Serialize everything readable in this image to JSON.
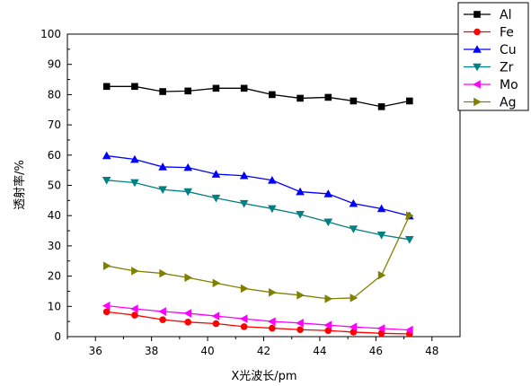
{
  "chart_data": {
    "type": "line",
    "title": "",
    "xlabel": "X光波长/pm",
    "ylabel": "透射率/%",
    "xlim": [
      35,
      49
    ],
    "ylim": [
      0,
      100
    ],
    "xticks": [
      36,
      38,
      40,
      42,
      44,
      46,
      48
    ],
    "yticks": [
      0,
      10,
      20,
      30,
      40,
      50,
      60,
      70,
      80,
      90,
      100
    ],
    "grid": false,
    "legend_position": "top-right",
    "x": [
      36.4,
      37.4,
      38.4,
      39.3,
      40.3,
      41.3,
      42.3,
      43.3,
      44.3,
      45.2,
      46.2,
      47.2
    ],
    "series": [
      {
        "name": "Al",
        "color": "#000000",
        "marker": "square",
        "values": [
          82.7,
          82.7,
          81.0,
          81.2,
          82.1,
          82.1,
          80.0,
          78.8,
          79.1,
          77.9,
          76.0,
          77.9
        ]
      },
      {
        "name": "Fe",
        "color": "#ff0000",
        "marker": "circle",
        "values": [
          8.2,
          7.1,
          5.6,
          4.8,
          4.3,
          3.3,
          2.8,
          2.3,
          2.0,
          1.5,
          1.1,
          0.9
        ]
      },
      {
        "name": "Cu",
        "color": "#0000ff",
        "marker": "triangle-up",
        "values": [
          59.8,
          58.6,
          56.1,
          55.9,
          53.7,
          53.2,
          51.7,
          47.9,
          47.2,
          44.0,
          42.3,
          39.9
        ]
      },
      {
        "name": "Zr",
        "color": "#008080",
        "marker": "triangle-down",
        "values": [
          51.7,
          50.9,
          48.6,
          47.9,
          45.8,
          44.0,
          42.3,
          40.4,
          37.9,
          35.6,
          33.6,
          32.1
        ]
      },
      {
        "name": "Mo",
        "color": "#ff00ff",
        "marker": "triangle-left",
        "values": [
          10.2,
          9.2,
          8.3,
          7.7,
          6.8,
          5.9,
          5.0,
          4.5,
          3.8,
          3.2,
          2.7,
          2.2
        ]
      },
      {
        "name": "Ag",
        "color": "#808000",
        "marker": "triangle-right",
        "values": [
          23.4,
          21.7,
          20.9,
          19.5,
          17.7,
          15.9,
          14.6,
          13.7,
          12.5,
          12.8,
          20.3,
          40.0
        ]
      }
    ]
  }
}
